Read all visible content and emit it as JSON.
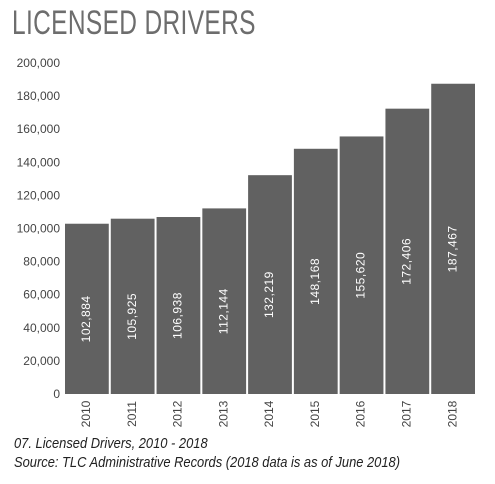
{
  "chart_data": {
    "type": "bar",
    "title": "LICENSED DRIVERS",
    "categories": [
      "2010",
      "2011",
      "2012",
      "2013",
      "2014",
      "2015",
      "2016",
      "2017",
      "2018"
    ],
    "values": [
      102884,
      105925,
      106938,
      112144,
      132219,
      148168,
      155620,
      172406,
      187467
    ],
    "value_labels": [
      "102,884",
      "105,925",
      "106,938",
      "112,144",
      "132,219",
      "148,168",
      "155,620",
      "172,406",
      "187,467"
    ],
    "ylim": [
      0,
      200000
    ],
    "yticks": [
      0,
      20000,
      40000,
      60000,
      80000,
      100000,
      120000,
      140000,
      160000,
      180000,
      200000
    ],
    "ytick_labels": [
      "0",
      "20,000",
      "40,000",
      "60,000",
      "80,000",
      "100,000",
      "120,000",
      "140,000",
      "160,000",
      "180,000",
      "200,000"
    ],
    "grid": false,
    "bar_color": "#616161",
    "value_label_color": "#ffffff",
    "tick_color": "#444444"
  },
  "caption": {
    "line1": "07. Licensed Drivers, 2010 - 2018",
    "line2": "Source: TLC Administrative Records (2018 data is as of June 2018)"
  }
}
